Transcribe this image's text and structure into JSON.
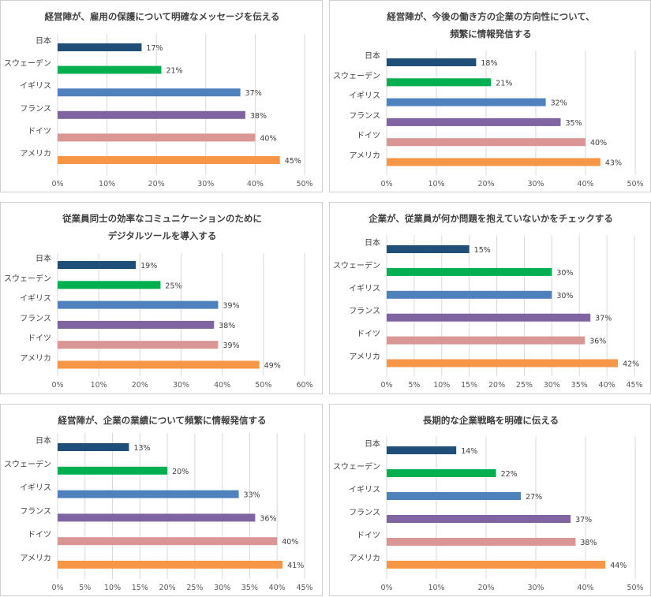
{
  "colors": {
    "日本": "#1f4e79",
    "スウェーデン": "#00b050",
    "イギリス": "#4f81bd",
    "フランス": "#8064a2",
    "ドイツ": "#d99694",
    "アメリカ": "#f79646"
  },
  "chart_data": [
    {
      "type": "bar",
      "orientation": "horizontal",
      "title": [
        "経営陣が、雇用の保護について明確なメッセージを伝える"
      ],
      "categories": [
        "日本",
        "スウェーデン",
        "イギリス",
        "フランス",
        "ドイツ",
        "アメリカ"
      ],
      "values": [
        17,
        21,
        37,
        38,
        40,
        45
      ],
      "value_format": "percent",
      "xlim": [
        0,
        50
      ],
      "xticks": [
        0,
        10,
        20,
        30,
        40,
        50
      ],
      "grid": true
    },
    {
      "type": "bar",
      "orientation": "horizontal",
      "title": [
        "経営陣が、今後の働き方の企業の方向性について、",
        "頻繁に情報発信する"
      ],
      "categories": [
        "日本",
        "スウェーデン",
        "イギリス",
        "フランス",
        "ドイツ",
        "アメリカ"
      ],
      "values": [
        18,
        21,
        32,
        35,
        40,
        43
      ],
      "value_format": "percent",
      "xlim": [
        0,
        50
      ],
      "xticks": [
        0,
        10,
        20,
        30,
        40,
        50
      ],
      "grid": true
    },
    {
      "type": "bar",
      "orientation": "horizontal",
      "title": [
        "従業員同士の効率なコミュニケーションのために",
        "デジタルツールを導入する"
      ],
      "categories": [
        "日本",
        "スウェーデン",
        "イギリス",
        "フランス",
        "ドイツ",
        "アメリカ"
      ],
      "values": [
        19,
        25,
        39,
        38,
        39,
        49
      ],
      "value_format": "percent",
      "xlim": [
        0,
        60
      ],
      "xticks": [
        0,
        10,
        20,
        30,
        40,
        50,
        60
      ],
      "grid": true
    },
    {
      "type": "bar",
      "orientation": "horizontal",
      "title": [
        "企業が、従業員が何か問題を抱えていないかをチェックする"
      ],
      "categories": [
        "日本",
        "スウェーデン",
        "イギリス",
        "フランス",
        "ドイツ",
        "アメリカ"
      ],
      "values": [
        15,
        30,
        30,
        37,
        36,
        42
      ],
      "value_format": "percent",
      "xlim": [
        0,
        45
      ],
      "xticks": [
        0,
        5,
        10,
        15,
        20,
        25,
        30,
        35,
        40,
        45
      ],
      "grid": true
    },
    {
      "type": "bar",
      "orientation": "horizontal",
      "title": [
        "経営陣が、企業の業績について頻繁に情報発信する"
      ],
      "categories": [
        "日本",
        "スウェーデン",
        "イギリス",
        "フランス",
        "ドイツ",
        "アメリカ"
      ],
      "values": [
        13,
        20,
        33,
        36,
        40,
        41
      ],
      "value_format": "percent",
      "xlim": [
        0,
        45
      ],
      "xticks": [
        0,
        5,
        10,
        15,
        20,
        25,
        30,
        35,
        40,
        45
      ],
      "grid": true
    },
    {
      "type": "bar",
      "orientation": "horizontal",
      "title": [
        "長期的な企業戦略を明確に伝える"
      ],
      "categories": [
        "日本",
        "スウェーデン",
        "イギリス",
        "フランス",
        "ドイツ",
        "アメリカ"
      ],
      "values": [
        14,
        22,
        27,
        37,
        38,
        44
      ],
      "value_format": "percent",
      "xlim": [
        0,
        50
      ],
      "xticks": [
        0,
        10,
        20,
        30,
        40,
        50
      ],
      "grid": true
    }
  ]
}
